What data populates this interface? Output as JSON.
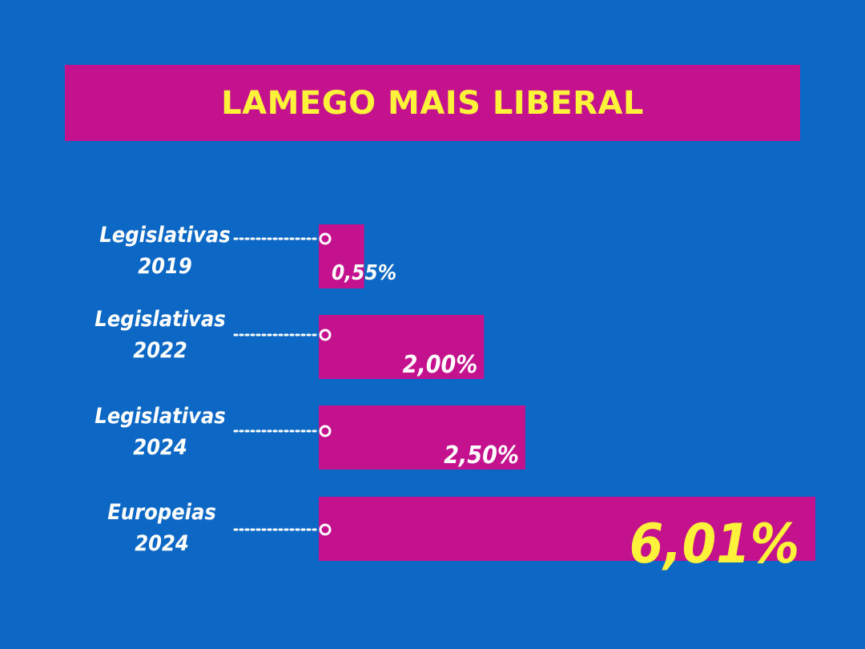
{
  "title": "LAMEGO MAIS LIBERAL",
  "colors": {
    "background": "#0d68c5",
    "bar": "#c4118e",
    "title_text": "#fff23a",
    "label_text": "#ffffff",
    "highlight_value": "#fff23a"
  },
  "chart_data": {
    "type": "bar",
    "orientation": "horizontal",
    "title": "LAMEGO MAIS LIBERAL",
    "categories": [
      [
        "Legislativas",
        "2019"
      ],
      [
        "Legislativas",
        "2022"
      ],
      [
        "Legislativas",
        "2024"
      ],
      [
        "Europeias",
        "2024"
      ]
    ],
    "values": [
      0.55,
      2.0,
      2.5,
      6.01
    ],
    "value_labels": [
      "0,55%",
      "2,00%",
      "2,50%",
      "6,01%"
    ],
    "unit": "%",
    "grid": false,
    "legend": "none"
  }
}
